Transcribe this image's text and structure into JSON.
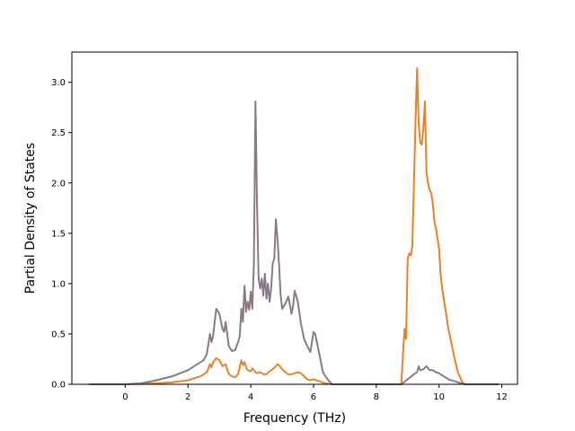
{
  "chart_data": {
    "type": "line",
    "title": "",
    "xlabel": "Frequency (THz)",
    "ylabel": "Partial Density of States",
    "xlim": [
      -1.7,
      12.5
    ],
    "ylim": [
      0.0,
      3.3
    ],
    "xticks": [
      0,
      2,
      4,
      6,
      8,
      10,
      12
    ],
    "yticks": [
      0.0,
      0.5,
      1.0,
      1.5,
      2.0,
      2.5,
      3.0
    ],
    "xtick_labels": [
      "0",
      "2",
      "4",
      "6",
      "8",
      "10",
      "12"
    ],
    "ytick_labels": [
      "0.0",
      "0.5",
      "1.0",
      "1.5",
      "2.0",
      "2.5",
      "3.0"
    ],
    "grid": false,
    "legend": "none",
    "series": [
      {
        "color": "#e8822a",
        "x": [
          -1.15,
          0.0,
          0.5,
          1.0,
          1.5,
          2.0,
          2.4,
          2.6,
          2.7,
          2.75,
          2.8,
          2.9,
          3.0,
          3.1,
          3.2,
          3.3,
          3.4,
          3.5,
          3.6,
          3.7,
          3.75,
          3.8,
          3.85,
          3.9,
          4.0,
          4.05,
          4.1,
          4.15,
          4.2,
          4.3,
          4.4,
          4.5,
          4.6,
          4.7,
          4.8,
          4.85,
          4.9,
          5.0,
          5.1,
          5.2,
          5.3,
          5.4,
          5.5,
          5.6,
          5.7,
          5.8,
          5.9,
          6.0,
          6.1,
          6.2,
          6.3,
          6.4,
          6.5,
          6.6,
          6.65,
          6.7,
          8.8,
          8.85,
          8.9,
          8.95,
          9.0,
          9.05,
          9.1,
          9.15,
          9.2,
          9.25,
          9.3,
          9.35,
          9.4,
          9.45,
          9.5,
          9.55,
          9.6,
          9.65,
          9.7,
          9.75,
          9.8,
          9.85,
          9.9,
          9.95,
          10.0,
          10.05,
          10.1,
          10.15,
          10.2,
          10.3,
          10.4,
          10.5,
          10.6,
          10.7,
          10.75,
          10.8,
          10.85,
          11.0,
          11.9
        ],
        "y": [
          0.0,
          0.0,
          0.005,
          0.01,
          0.02,
          0.04,
          0.08,
          0.12,
          0.2,
          0.17,
          0.22,
          0.26,
          0.24,
          0.18,
          0.2,
          0.1,
          0.08,
          0.07,
          0.1,
          0.24,
          0.19,
          0.22,
          0.17,
          0.14,
          0.13,
          0.16,
          0.14,
          0.12,
          0.11,
          0.12,
          0.1,
          0.1,
          0.13,
          0.15,
          0.18,
          0.2,
          0.19,
          0.15,
          0.12,
          0.1,
          0.1,
          0.11,
          0.12,
          0.11,
          0.08,
          0.05,
          0.04,
          0.05,
          0.04,
          0.03,
          0.015,
          0.008,
          0.004,
          0.002,
          0.0,
          0.0,
          0.0,
          0.3,
          0.55,
          0.45,
          1.25,
          1.3,
          1.28,
          1.38,
          2.0,
          2.6,
          3.14,
          2.6,
          2.4,
          2.38,
          2.55,
          2.81,
          2.1,
          2.0,
          1.93,
          1.9,
          1.8,
          1.62,
          1.55,
          1.45,
          1.35,
          1.1,
          0.95,
          0.85,
          0.75,
          0.55,
          0.4,
          0.25,
          0.12,
          0.05,
          0.02,
          0.0,
          0.0,
          0.0,
          0.0
        ]
      },
      {
        "color": "#8a7a86",
        "x": [
          -1.15,
          0.0,
          0.5,
          1.0,
          1.5,
          2.0,
          2.3,
          2.5,
          2.6,
          2.7,
          2.75,
          2.8,
          2.9,
          3.0,
          3.1,
          3.15,
          3.2,
          3.3,
          3.4,
          3.5,
          3.6,
          3.65,
          3.7,
          3.75,
          3.8,
          3.85,
          3.9,
          3.95,
          4.0,
          4.05,
          4.1,
          4.15,
          4.2,
          4.25,
          4.3,
          4.35,
          4.4,
          4.45,
          4.5,
          4.55,
          4.6,
          4.65,
          4.7,
          4.75,
          4.8,
          4.85,
          4.9,
          4.95,
          5.0,
          5.1,
          5.2,
          5.3,
          5.35,
          5.4,
          5.5,
          5.6,
          5.7,
          5.8,
          5.9,
          6.0,
          6.05,
          6.1,
          6.2,
          6.3,
          6.4,
          6.5,
          6.6,
          6.7,
          8.8,
          9.0,
          9.2,
          9.3,
          9.35,
          9.4,
          9.5,
          9.6,
          9.7,
          9.8,
          9.9,
          10.0,
          10.1,
          10.2,
          10.3,
          10.4,
          10.5,
          10.6,
          10.7,
          10.8,
          10.85,
          11.0,
          11.9
        ],
        "y": [
          0.0,
          0.0,
          0.01,
          0.04,
          0.08,
          0.14,
          0.2,
          0.24,
          0.3,
          0.5,
          0.42,
          0.48,
          0.75,
          0.7,
          0.55,
          0.52,
          0.62,
          0.38,
          0.33,
          0.34,
          0.42,
          0.48,
          0.75,
          0.62,
          0.98,
          0.72,
          0.82,
          0.74,
          0.92,
          0.75,
          1.2,
          2.81,
          1.8,
          1.05,
          0.95,
          1.05,
          0.88,
          1.1,
          0.85,
          1.0,
          0.82,
          0.95,
          1.2,
          1.25,
          1.64,
          1.45,
          1.2,
          0.9,
          0.75,
          0.8,
          0.87,
          0.7,
          0.78,
          0.93,
          0.82,
          0.6,
          0.45,
          0.38,
          0.32,
          0.52,
          0.5,
          0.43,
          0.28,
          0.12,
          0.07,
          0.03,
          0.0,
          0.0,
          0.0,
          0.05,
          0.1,
          0.12,
          0.18,
          0.14,
          0.15,
          0.18,
          0.14,
          0.14,
          0.12,
          0.11,
          0.09,
          0.07,
          0.05,
          0.04,
          0.03,
          0.02,
          0.01,
          0.005,
          0.0,
          0.0,
          0.0
        ]
      }
    ]
  }
}
